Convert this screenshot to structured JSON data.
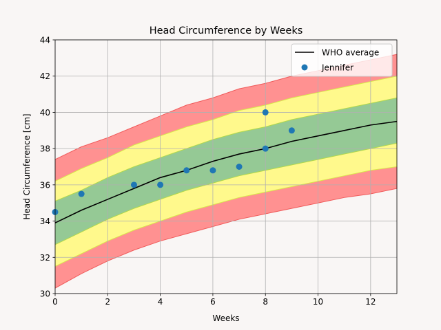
{
  "chart_data": {
    "type": "line",
    "title": "Head Circumference by Weeks",
    "xlabel": "Weeks",
    "ylabel": "Head Circumference [cm]",
    "xlim": [
      0,
      13
    ],
    "ylim": [
      30,
      44
    ],
    "xticks": [
      "0",
      "2",
      "4",
      "6",
      "8",
      "10",
      "12"
    ],
    "yticks": [
      "30",
      "32",
      "34",
      "36",
      "38",
      "40",
      "42",
      "44"
    ],
    "grid": true,
    "legend_position": "top-right",
    "bands": {
      "x": [
        0,
        1,
        2,
        3,
        4,
        5,
        6,
        7,
        8,
        9,
        10,
        11,
        12,
        13
      ],
      "outer_lower": [
        30.3,
        31.1,
        31.8,
        32.4,
        32.9,
        33.3,
        33.7,
        34.1,
        34.4,
        34.7,
        35.0,
        35.3,
        35.5,
        35.8
      ],
      "yellow_lower": [
        31.5,
        32.2,
        32.9,
        33.5,
        34.0,
        34.5,
        34.9,
        35.3,
        35.6,
        35.9,
        36.2,
        36.5,
        36.8,
        37.0
      ],
      "green_lower": [
        32.7,
        33.4,
        34.1,
        34.7,
        35.2,
        35.7,
        36.1,
        36.5,
        36.8,
        37.1,
        37.4,
        37.7,
        38.0,
        38.3
      ],
      "green_upper": [
        35.1,
        35.7,
        36.4,
        37.0,
        37.5,
        38.0,
        38.5,
        38.9,
        39.2,
        39.6,
        39.9,
        40.2,
        40.5,
        40.8
      ],
      "yellow_upper": [
        36.2,
        36.9,
        37.5,
        38.2,
        38.7,
        39.2,
        39.6,
        40.1,
        40.4,
        40.8,
        41.1,
        41.4,
        41.7,
        42.0
      ],
      "outer_upper": [
        37.4,
        38.1,
        38.6,
        39.2,
        39.8,
        40.4,
        40.8,
        41.3,
        41.6,
        42.0,
        42.3,
        42.6,
        42.9,
        43.2
      ],
      "colors": {
        "outer": "#ff9191",
        "outer_edge": "#f05a5a",
        "yellow": "#fff98c",
        "yellow_edge": "#d8e84a",
        "green": "#95c995",
        "green_edge": "#b2d94a"
      }
    },
    "series": [
      {
        "name": "WHO average",
        "kind": "line",
        "color": "#000000",
        "x": [
          0,
          1,
          2,
          3,
          4,
          5,
          6,
          7,
          8,
          9,
          10,
          11,
          12,
          13
        ],
        "y": [
          33.9,
          34.6,
          35.2,
          35.8,
          36.4,
          36.8,
          37.3,
          37.7,
          38.0,
          38.4,
          38.7,
          39.0,
          39.3,
          39.5
        ]
      },
      {
        "name": "Jennifer",
        "kind": "scatter",
        "color": "#1f77b4",
        "x": [
          0,
          1,
          3,
          4,
          5,
          6,
          7,
          8,
          8,
          9
        ],
        "y": [
          34.5,
          35.5,
          36.0,
          36.0,
          36.8,
          36.8,
          37.0,
          38.0,
          40.0,
          39.0
        ]
      }
    ]
  }
}
